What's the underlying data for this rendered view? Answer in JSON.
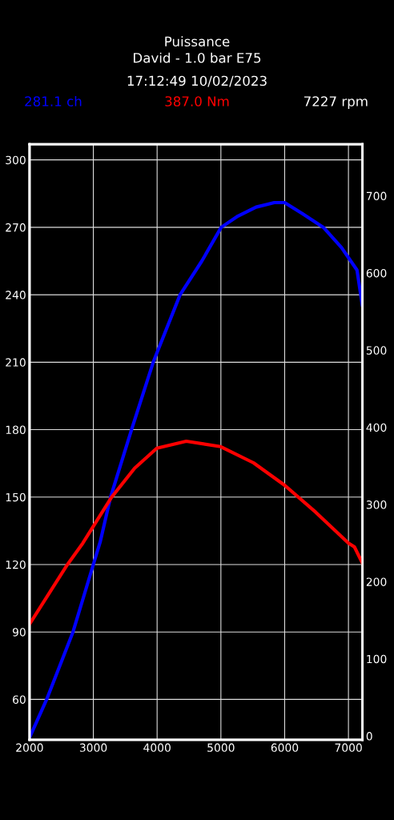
{
  "chart_data": {
    "type": "line",
    "title": "Puissance",
    "subtitle": "David - 1.0 bar E75",
    "annotations": [
      "17:12:49 10/02/2023",
      "281.1 ch",
      "387.0 Nm",
      "7227 rpm"
    ],
    "series": [
      {
        "color": "#0000ff",
        "x": [
          2000,
          2268,
          2681,
          3000,
          3107,
          3270,
          3599,
          3939,
          4360,
          4701,
          5005,
          5268,
          5552,
          5837,
          6000,
          6282,
          6607,
          6891,
          7134,
          7219
        ],
        "values": [
          43,
          60,
          90,
          120,
          130,
          150,
          180,
          210,
          240,
          255,
          270,
          275,
          279,
          281,
          281,
          276,
          270,
          261,
          251,
          235
        ]
      },
      {
        "color": "#ff0000",
        "axis": "y2",
        "x": [
          2000,
          2592,
          2836,
          3282,
          3647,
          3995,
          4457,
          4998,
          5512,
          6000,
          6487,
          7000,
          7094,
          7219
        ],
        "values": [
          145,
          222,
          250,
          309,
          347,
          373,
          382,
          375,
          354,
          325,
          290,
          250,
          245,
          224
        ]
      }
    ],
    "xlim": [
      2000,
      7220
    ],
    "xticks": [
      2000,
      3000,
      4000,
      5000,
      6000,
      7000
    ],
    "ylim": [
      42,
      307
    ],
    "yticks": [
      60,
      90,
      120,
      150,
      180,
      210,
      240,
      270,
      300
    ],
    "y2lim": [
      -5,
      767
    ],
    "y2ticks": [
      0,
      100,
      200,
      300,
      400,
      500,
      600,
      700
    ],
    "grid": true,
    "line_style": "solid",
    "marker": "none"
  }
}
